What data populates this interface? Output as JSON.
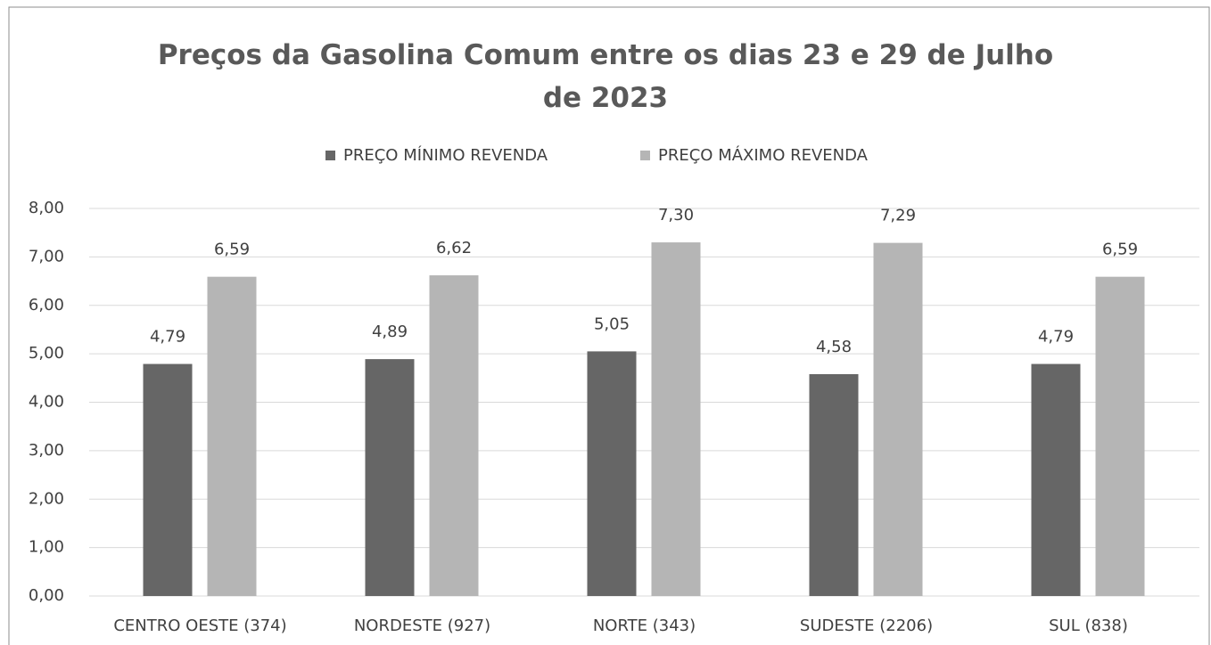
{
  "chart_data": {
    "type": "bar",
    "title": "Preços da Gasolina Comum entre os dias 23 e 29 de Julho de 2023",
    "categories": [
      "CENTRO OESTE (374)",
      "NORDESTE (927)",
      "NORTE (343)",
      "SUDESTE (2206)",
      "SUL (838)"
    ],
    "series": [
      {
        "name": "PREÇO MÍNIMO REVENDA",
        "color": "#666666",
        "values": [
          4.79,
          4.89,
          5.05,
          4.58,
          4.79
        ],
        "value_labels": [
          "4,79",
          "4,89",
          "5,05",
          "4,58",
          "4,79"
        ]
      },
      {
        "name": "PREÇO MÁXIMO REVENDA",
        "color": "#b5b5b5",
        "values": [
          6.59,
          6.62,
          7.3,
          7.29,
          6.59
        ],
        "value_labels": [
          "6,59",
          "6,62",
          "7,30",
          "7,29",
          "6,59"
        ]
      }
    ],
    "ylim": [
      0,
      8
    ],
    "yticks": [
      {
        "value": 0,
        "label": "0,00"
      },
      {
        "value": 1,
        "label": "1,00"
      },
      {
        "value": 2,
        "label": "2,00"
      },
      {
        "value": 3,
        "label": "3,00"
      },
      {
        "value": 4,
        "label": "4,00"
      },
      {
        "value": 5,
        "label": "5,00"
      },
      {
        "value": 6,
        "label": "6,00"
      },
      {
        "value": 7,
        "label": "7,00"
      },
      {
        "value": 8,
        "label": "8,00"
      }
    ],
    "grid": true,
    "legend": "top"
  }
}
